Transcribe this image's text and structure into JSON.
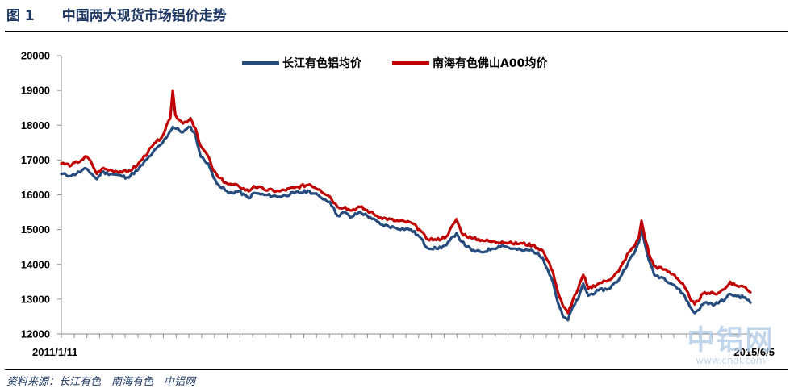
{
  "header": {
    "fig_label": "图 1",
    "title": "中国两大现货市场铝价走势"
  },
  "source": "资料来源：长江有色　南海有色　中铝网",
  "watermark": {
    "text": "中铝网",
    "url": "www.cnal.com"
  },
  "colors": {
    "series1": "#264b7d",
    "series2": "#c00000",
    "header": "#1f3864"
  },
  "chart_data": {
    "type": "line",
    "x_start_label": "2011/1/11",
    "x_end_label": "2015/6/5",
    "ylim": [
      12000,
      20000
    ],
    "yticks": [
      12000,
      13000,
      14000,
      15000,
      16000,
      17000,
      18000,
      19000,
      20000
    ],
    "ytick_labels": [
      "12000",
      "13000",
      "14000",
      "15000",
      "16000",
      "17000",
      "18000",
      "19000",
      "20000"
    ],
    "grid": false,
    "legend_position": "top-center",
    "series": [
      {
        "name": "长江有色铝均价",
        "color": "#264b7d",
        "key_points": [
          [
            0,
            16600
          ],
          [
            0.02,
            16550
          ],
          [
            0.05,
            16750
          ],
          [
            0.06,
            16600
          ],
          [
            0.07,
            16450
          ],
          [
            0.08,
            16650
          ],
          [
            0.1,
            16600
          ],
          [
            0.13,
            16500
          ],
          [
            0.15,
            16700
          ],
          [
            0.18,
            17200
          ],
          [
            0.2,
            17500
          ],
          [
            0.22,
            17950
          ],
          [
            0.24,
            17800
          ],
          [
            0.255,
            17950
          ],
          [
            0.265,
            17700
          ],
          [
            0.275,
            17100
          ],
          [
            0.29,
            16900
          ],
          [
            0.3,
            16500
          ],
          [
            0.31,
            16300
          ],
          [
            0.33,
            16050
          ],
          [
            0.35,
            16100
          ],
          [
            0.37,
            15900
          ],
          [
            0.38,
            16050
          ],
          [
            0.4,
            16000
          ],
          [
            0.43,
            15950
          ],
          [
            0.46,
            16050
          ],
          [
            0.49,
            16100
          ],
          [
            0.51,
            15950
          ],
          [
            0.53,
            15800
          ],
          [
            0.545,
            15400
          ],
          [
            0.56,
            15500
          ],
          [
            0.57,
            15350
          ],
          [
            0.59,
            15500
          ],
          [
            0.61,
            15350
          ],
          [
            0.63,
            15150
          ],
          [
            0.66,
            15050
          ],
          [
            0.69,
            15000
          ],
          [
            0.71,
            14750
          ],
          [
            0.72,
            14500
          ],
          [
            0.74,
            14450
          ],
          [
            0.76,
            14550
          ],
          [
            0.78,
            14900
          ],
          [
            0.79,
            14650
          ],
          [
            0.81,
            14400
          ],
          [
            0.83,
            14350
          ],
          [
            0.85,
            14450
          ],
          [
            0.87,
            14550
          ],
          [
            0.89,
            14450
          ],
          [
            0.91,
            14400
          ],
          [
            0.93,
            14400
          ],
          [
            0.95,
            14200
          ],
          [
            0.96,
            13850
          ],
          [
            0.97,
            13500
          ],
          [
            0.98,
            12900
          ],
          [
            0.99,
            12500
          ],
          [
            1.0,
            12400
          ],
          [
            1.01,
            12800
          ],
          [
            1.02,
            13000
          ],
          [
            1.03,
            13450
          ],
          [
            1.04,
            13100
          ],
          [
            1.06,
            13250
          ],
          [
            1.08,
            13300
          ],
          [
            1.1,
            13550
          ],
          [
            1.12,
            14100
          ],
          [
            1.13,
            14300
          ],
          [
            1.14,
            14650
          ],
          [
            1.145,
            15000
          ],
          [
            1.15,
            14700
          ],
          [
            1.16,
            14100
          ],
          [
            1.17,
            13700
          ],
          [
            1.19,
            13600
          ],
          [
            1.21,
            13400
          ],
          [
            1.23,
            13100
          ],
          [
            1.24,
            12800
          ],
          [
            1.25,
            12600
          ],
          [
            1.27,
            12900
          ],
          [
            1.29,
            12850
          ],
          [
            1.31,
            13000
          ],
          [
            1.32,
            13150
          ],
          [
            1.33,
            13100
          ],
          [
            1.35,
            13050
          ],
          [
            1.36,
            12900
          ]
        ]
      },
      {
        "name": "南海有色佛山A00均价",
        "color": "#c00000",
        "key_points": [
          [
            0,
            16900
          ],
          [
            0.02,
            16850
          ],
          [
            0.04,
            17000
          ],
          [
            0.05,
            17100
          ],
          [
            0.06,
            16900
          ],
          [
            0.07,
            16600
          ],
          [
            0.08,
            16750
          ],
          [
            0.1,
            16700
          ],
          [
            0.13,
            16650
          ],
          [
            0.15,
            16850
          ],
          [
            0.18,
            17400
          ],
          [
            0.2,
            17700
          ],
          [
            0.215,
            18200
          ],
          [
            0.22,
            19000
          ],
          [
            0.225,
            18300
          ],
          [
            0.24,
            18050
          ],
          [
            0.255,
            18200
          ],
          [
            0.265,
            17900
          ],
          [
            0.275,
            17400
          ],
          [
            0.29,
            17100
          ],
          [
            0.3,
            16700
          ],
          [
            0.31,
            16500
          ],
          [
            0.33,
            16300
          ],
          [
            0.35,
            16250
          ],
          [
            0.37,
            16100
          ],
          [
            0.38,
            16250
          ],
          [
            0.4,
            16150
          ],
          [
            0.43,
            16100
          ],
          [
            0.46,
            16200
          ],
          [
            0.49,
            16300
          ],
          [
            0.51,
            16150
          ],
          [
            0.53,
            15950
          ],
          [
            0.545,
            15650
          ],
          [
            0.56,
            15650
          ],
          [
            0.57,
            15550
          ],
          [
            0.59,
            15650
          ],
          [
            0.61,
            15500
          ],
          [
            0.63,
            15350
          ],
          [
            0.66,
            15250
          ],
          [
            0.69,
            15200
          ],
          [
            0.71,
            14950
          ],
          [
            0.72,
            14750
          ],
          [
            0.74,
            14700
          ],
          [
            0.76,
            14800
          ],
          [
            0.78,
            15300
          ],
          [
            0.79,
            14900
          ],
          [
            0.81,
            14750
          ],
          [
            0.83,
            14700
          ],
          [
            0.85,
            14650
          ],
          [
            0.87,
            14650
          ],
          [
            0.89,
            14600
          ],
          [
            0.91,
            14600
          ],
          [
            0.93,
            14550
          ],
          [
            0.95,
            14400
          ],
          [
            0.96,
            14100
          ],
          [
            0.97,
            13800
          ],
          [
            0.98,
            13200
          ],
          [
            0.99,
            12800
          ],
          [
            1.0,
            12600
          ],
          [
            1.01,
            13000
          ],
          [
            1.02,
            13300
          ],
          [
            1.03,
            13700
          ],
          [
            1.04,
            13300
          ],
          [
            1.06,
            13450
          ],
          [
            1.08,
            13550
          ],
          [
            1.1,
            13800
          ],
          [
            1.12,
            14350
          ],
          [
            1.13,
            14500
          ],
          [
            1.14,
            14800
          ],
          [
            1.145,
            15250
          ],
          [
            1.15,
            14900
          ],
          [
            1.16,
            14300
          ],
          [
            1.17,
            13950
          ],
          [
            1.19,
            13850
          ],
          [
            1.21,
            13700
          ],
          [
            1.23,
            13350
          ],
          [
            1.24,
            13050
          ],
          [
            1.25,
            12850
          ],
          [
            1.27,
            13200
          ],
          [
            1.29,
            13150
          ],
          [
            1.31,
            13300
          ],
          [
            1.32,
            13500
          ],
          [
            1.33,
            13400
          ],
          [
            1.35,
            13350
          ],
          [
            1.36,
            13200
          ]
        ]
      }
    ]
  }
}
